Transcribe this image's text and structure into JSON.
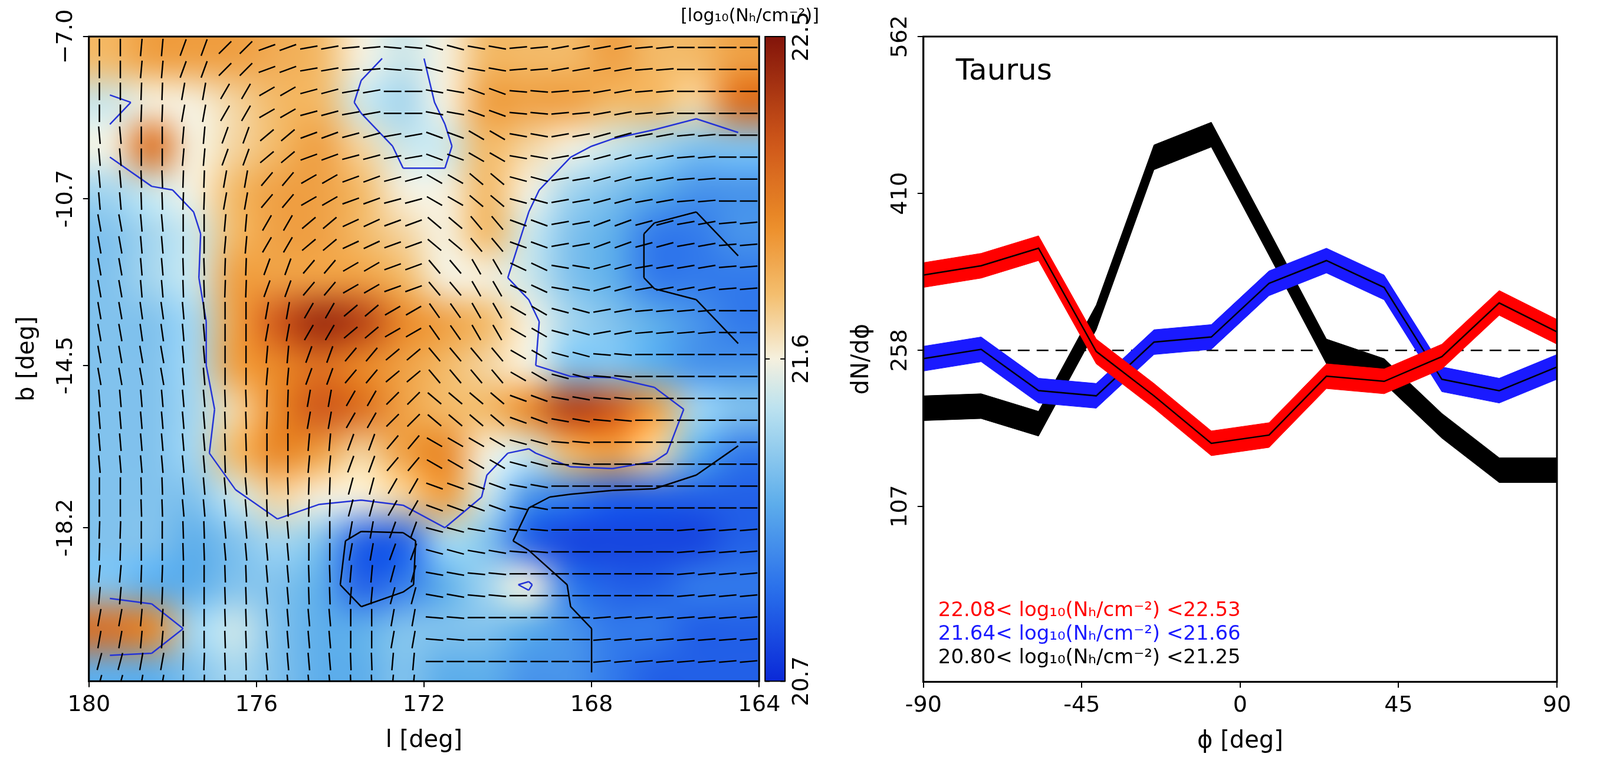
{
  "chart_data": [
    {
      "type": "heatmap",
      "x_label": "l [deg]",
      "y_label": "b [deg]",
      "xlim": [
        180,
        164
      ],
      "ylim": [
        -21.7,
        -7
      ],
      "xticks": [
        180,
        176,
        172,
        168,
        164
      ],
      "yticks": [
        {
          "value": -7,
          "label": "−7.0"
        },
        -10.7,
        -14.5,
        -18.2
      ],
      "x": [
        179.5,
        178.5,
        177.5,
        176.5,
        175.5,
        174.5,
        173.5,
        172.5,
        171.5,
        170.5,
        169.5,
        168.5,
        167.5,
        166.5,
        165.5,
        164.5
      ],
      "y": [
        -7.5,
        -8.5,
        -9.5,
        -10.5,
        -11.5,
        -12.5,
        -13.5,
        -14.5,
        -15.5,
        -16.5,
        -17.5,
        -18.5,
        -19.5,
        -20.5,
        -21.5
      ],
      "values": [
        [
          21.8,
          21.9,
          21.9,
          21.9,
          21.85,
          21.8,
          21.6,
          21.5,
          21.6,
          21.8,
          21.8,
          21.8,
          21.9,
          21.8,
          21.8,
          21.9
        ],
        [
          21.5,
          21.6,
          21.6,
          21.7,
          21.8,
          21.8,
          21.5,
          21.4,
          21.6,
          21.9,
          21.9,
          21.9,
          21.8,
          21.8,
          21.7,
          22.1
        ],
        [
          21.6,
          22.1,
          21.6,
          21.7,
          21.8,
          21.9,
          21.7,
          21.5,
          21.5,
          21.8,
          21.7,
          21.6,
          21.5,
          21.4,
          21.3,
          21.3
        ],
        [
          21.4,
          21.5,
          21.6,
          21.8,
          21.9,
          21.9,
          21.8,
          21.6,
          21.6,
          21.8,
          21.6,
          21.4,
          21.3,
          21.2,
          21.1,
          21.1
        ],
        [
          21.3,
          21.4,
          21.5,
          21.8,
          21.9,
          21.9,
          21.8,
          21.7,
          21.6,
          21.8,
          21.5,
          21.3,
          21.2,
          21.0,
          21.0,
          21.1
        ],
        [
          21.3,
          21.4,
          21.5,
          21.9,
          21.9,
          21.9,
          21.9,
          21.8,
          21.6,
          21.6,
          21.5,
          21.3,
          21.2,
          21.0,
          21.0,
          21.0
        ],
        [
          21.3,
          21.3,
          21.4,
          21.9,
          22.2,
          22.4,
          22.3,
          22.0,
          21.9,
          21.8,
          21.6,
          21.4,
          21.3,
          21.2,
          21.1,
          21.0
        ],
        [
          21.3,
          21.3,
          21.4,
          21.9,
          22.0,
          22.1,
          22.0,
          21.9,
          21.8,
          21.7,
          21.6,
          21.3,
          21.3,
          21.2,
          21.1,
          21.1
        ],
        [
          21.3,
          21.3,
          21.4,
          21.7,
          22.0,
          22.2,
          22.1,
          21.9,
          21.8,
          21.8,
          22.0,
          22.3,
          22.2,
          21.9,
          21.4,
          21.3
        ],
        [
          21.3,
          21.3,
          21.4,
          21.8,
          22.0,
          21.9,
          21.7,
          21.9,
          22.0,
          21.6,
          21.5,
          21.8,
          21.9,
          21.7,
          21.2,
          21.0
        ],
        [
          21.3,
          21.3,
          21.3,
          21.5,
          21.7,
          21.6,
          21.6,
          21.7,
          21.9,
          21.5,
          21.1,
          21.0,
          20.9,
          20.9,
          20.9,
          20.9
        ],
        [
          21.3,
          21.3,
          21.2,
          21.3,
          21.4,
          21.3,
          20.9,
          20.9,
          21.4,
          21.3,
          20.9,
          20.8,
          20.8,
          20.8,
          20.8,
          20.9
        ],
        [
          21.3,
          21.2,
          21.2,
          21.3,
          21.3,
          21.2,
          20.9,
          21.0,
          21.2,
          21.4,
          21.6,
          21.0,
          20.9,
          20.9,
          21.0,
          21.0
        ],
        [
          22.1,
          22.0,
          21.4,
          21.5,
          21.3,
          21.2,
          21.2,
          21.3,
          21.3,
          21.3,
          21.2,
          21.1,
          21.0,
          21.0,
          20.9,
          20.9
        ],
        [
          21.2,
          21.2,
          21.3,
          21.4,
          21.3,
          21.2,
          21.2,
          21.3,
          21.2,
          21.2,
          21.1,
          21.1,
          21.0,
          20.9,
          20.9,
          20.9
        ]
      ],
      "vector_angles": [
        [
          90,
          85,
          70,
          45,
          20,
          10,
          5,
          175,
          165,
          170,
          5,
          10,
          10,
          5,
          0,
          0
        ],
        [
          90,
          88,
          80,
          60,
          30,
          15,
          10,
          0,
          170,
          160,
          175,
          5,
          10,
          5,
          0,
          0
        ],
        [
          95,
          90,
          85,
          70,
          40,
          20,
          15,
          10,
          160,
          150,
          170,
          10,
          15,
          10,
          5,
          0
        ],
        [
          95,
          92,
          88,
          80,
          50,
          30,
          20,
          15,
          150,
          140,
          165,
          10,
          15,
          10,
          5,
          0
        ],
        [
          100,
          95,
          90,
          85,
          60,
          40,
          25,
          20,
          140,
          130,
          160,
          10,
          20,
          15,
          10,
          5
        ],
        [
          100,
          95,
          92,
          88,
          70,
          50,
          30,
          20,
          130,
          120,
          155,
          170,
          15,
          10,
          10,
          5
        ],
        [
          100,
          98,
          95,
          90,
          80,
          60,
          40,
          30,
          125,
          120,
          150,
          165,
          10,
          5,
          5,
          0
        ],
        [
          100,
          100,
          95,
          90,
          85,
          70,
          50,
          40,
          130,
          130,
          150,
          165,
          175,
          0,
          0,
          0
        ],
        [
          95,
          95,
          95,
          92,
          88,
          80,
          60,
          45,
          140,
          140,
          160,
          170,
          175,
          0,
          0,
          0
        ],
        [
          95,
          95,
          95,
          92,
          90,
          85,
          70,
          50,
          150,
          150,
          165,
          175,
          0,
          0,
          0,
          0
        ],
        [
          90,
          92,
          95,
          95,
          92,
          88,
          75,
          60,
          160,
          160,
          170,
          0,
          0,
          0,
          0,
          0
        ],
        [
          88,
          90,
          92,
          95,
          95,
          90,
          80,
          70,
          165,
          170,
          175,
          0,
          0,
          0,
          5,
          5
        ],
        [
          85,
          88,
          90,
          92,
          95,
          92,
          85,
          75,
          170,
          175,
          0,
          0,
          0,
          0,
          5,
          5
        ],
        [
          80,
          85,
          90,
          92,
          95,
          95,
          90,
          80,
          175,
          0,
          0,
          0,
          5,
          5,
          5,
          5
        ],
        [
          75,
          80,
          88,
          92,
          95,
          95,
          92,
          85,
          0,
          0,
          0,
          0,
          5,
          5,
          5,
          5
        ]
      ],
      "contours": [
        {
          "level": 21.55,
          "color": "#2433d6"
        },
        {
          "level": 21.05,
          "color": "#000000"
        }
      ],
      "colorbar": {
        "title": "[log₁₀(Nₕ/cm⁻²)]",
        "range": [
          20.7,
          22.5
        ],
        "ticks": [
          20.7,
          21.6,
          22.5
        ]
      }
    },
    {
      "type": "line",
      "title": "Taurus",
      "x_label": "ϕ [deg]",
      "y_label": "dN/dϕ",
      "xlim": [
        -90,
        90
      ],
      "ylim": [
        -63,
        562
      ],
      "xticks": [
        -90,
        -45,
        0,
        45,
        90
      ],
      "yticks": [
        107,
        258,
        410,
        562
      ],
      "x": [
        -90,
        -73.6,
        -57.3,
        -40.9,
        -24.5,
        -8.2,
        8.2,
        24.5,
        40.9,
        57.3,
        73.6,
        90
      ],
      "series": [
        {
          "name": "22.08< log₁₀(Nₕ/cm⁻²) <22.53",
          "color": "#ff0000",
          "values": [
            331,
            340,
            357,
            257,
            214,
            168,
            176,
            233,
            228,
            252,
            304,
            276
          ],
          "errors": [
            12,
            12,
            12,
            12,
            12,
            12,
            12,
            12,
            12,
            12,
            12,
            12
          ]
        },
        {
          "name": "21.64< log₁₀(Nₕ/cm⁻²) <21.66",
          "color": "#1a1aff",
          "values": [
            250,
            259,
            219,
            214,
            266,
            271,
            323,
            345,
            319,
            230,
            219,
            242
          ],
          "errors": [
            12,
            12,
            12,
            12,
            12,
            12,
            12,
            12,
            12,
            12,
            12,
            12
          ]
        },
        {
          "name": "20.80< log₁₀(Nₕ/cm⁻²) <21.25",
          "color": "#000000",
          "values": [
            202,
            204,
            187,
            290,
            445,
            467,
            362,
            257,
            238,
            185,
            142,
            142
          ],
          "errors": [
            12,
            12,
            12,
            12,
            12,
            12,
            12,
            12,
            12,
            12,
            12,
            12
          ]
        }
      ],
      "mean_line": 258,
      "legend": "lower left"
    }
  ]
}
